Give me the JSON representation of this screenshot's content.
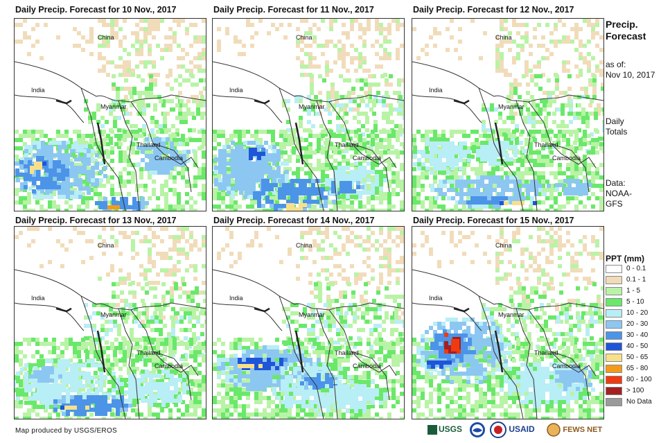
{
  "panels": [
    {
      "title": "Daily Precip. Forecast for 10 Nov., 2017",
      "variant": 0
    },
    {
      "title": "Daily Precip. Forecast for 11 Nov., 2017",
      "variant": 1
    },
    {
      "title": "Daily Precip. Forecast for 12 Nov., 2017",
      "variant": 2
    },
    {
      "title": "Daily Precip. Forecast for 13 Nov., 2017",
      "variant": 3
    },
    {
      "title": "Daily Precip. Forecast for 14 Nov., 2017",
      "variant": 4
    },
    {
      "title": "Daily Precip. Forecast for 15 Nov., 2017",
      "variant": 5
    }
  ],
  "map_labels": {
    "china": "China",
    "india": "India",
    "myanmar": "Myanmar",
    "thailand": "Thailand",
    "cambodia": "Cambodia"
  },
  "side": {
    "title_line1": "Precip.",
    "title_line2": "Forecast",
    "asof_line1": "as of:",
    "asof_line2": "Nov 10, 2017",
    "totals_line1": "Daily",
    "totals_line2": "Totals",
    "data_line1": "Data:",
    "data_line2": "NOAA-",
    "data_line3": "GFS"
  },
  "legend": {
    "title": "PPT (mm)",
    "items": [
      {
        "label": "0 - 0.1",
        "color": "#ffffff"
      },
      {
        "label": "0.1 - 1",
        "color": "#f1dcba"
      },
      {
        "label": "1 - 5",
        "color": "#b9f3a6"
      },
      {
        "label": "5 - 10",
        "color": "#6ae86a"
      },
      {
        "label": "10 - 20",
        "color": "#b8eef5"
      },
      {
        "label": "20 - 30",
        "color": "#8cc7f2"
      },
      {
        "label": "30 - 40",
        "color": "#4c94e8"
      },
      {
        "label": "40 - 50",
        "color": "#1f55d8"
      },
      {
        "label": "50 - 65",
        "color": "#f8e08a"
      },
      {
        "label": "65 - 80",
        "color": "#f39a1c"
      },
      {
        "label": "80 - 100",
        "color": "#f03a10"
      },
      {
        "label": "> 100",
        "color": "#a42020"
      },
      {
        "label": "No Data",
        "color": "#9a9a9a"
      }
    ]
  },
  "footer": "Map produced by USGS/EROS",
  "logos": {
    "usgs": "USGS",
    "usaid": "USAID",
    "fewsnet": "FEWS NET"
  }
}
